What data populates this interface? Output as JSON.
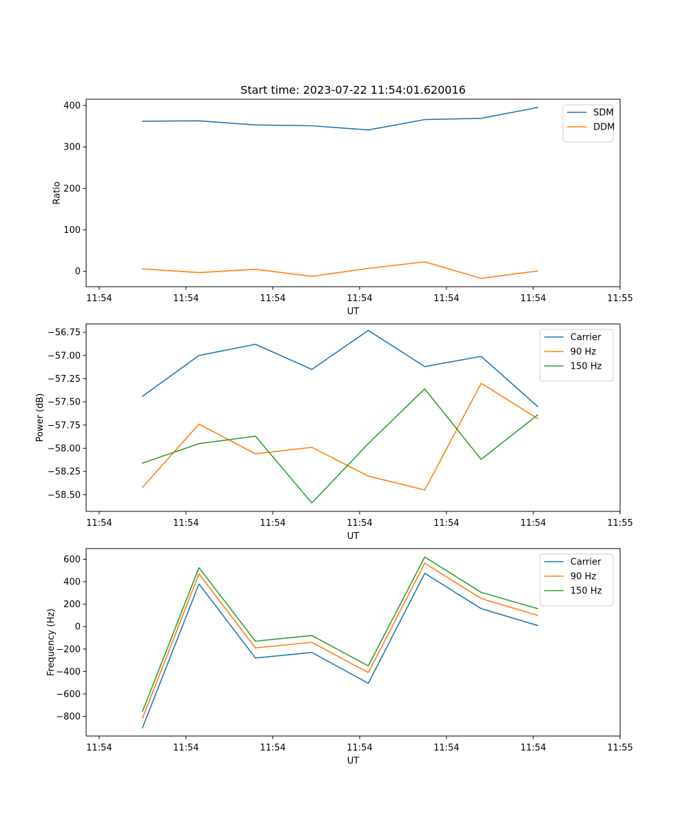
{
  "figure_title": "Start time: 2023-07-22 11:54:01.620016",
  "chart_data": [
    {
      "type": "line",
      "title": "Start time: 2023-07-22 11:54:01.620016",
      "xlabel": "UT",
      "ylabel": "Ratio",
      "x": [
        0.5,
        1.15,
        1.8,
        2.45,
        3.1,
        3.75,
        4.4,
        5.05
      ],
      "xlim": [
        -0.15,
        6.0
      ],
      "xticks": [
        0,
        1,
        2,
        3,
        4,
        5,
        6
      ],
      "xtick_labels": [
        "11:54",
        "11:54",
        "11:54",
        "11:54",
        "11:54",
        "11:54",
        "11:55"
      ],
      "ylim": [
        -37,
        415
      ],
      "yticks": [
        0,
        100,
        200,
        300,
        400
      ],
      "ytick_labels": [
        "0",
        "100",
        "200",
        "300",
        "400"
      ],
      "legend_position": "top-right",
      "series": [
        {
          "name": "SDM",
          "color": "#1f77b4",
          "values": [
            362,
            363,
            353,
            351,
            341,
            366,
            369,
            395
          ]
        },
        {
          "name": "DDM",
          "color": "#ff7f0e",
          "values": [
            6,
            -3,
            5,
            -12,
            7,
            23,
            -17,
            1
          ]
        }
      ]
    },
    {
      "type": "line",
      "title": "",
      "xlabel": "UT",
      "ylabel": "Power (dB)",
      "x": [
        0.5,
        1.15,
        1.8,
        2.45,
        3.1,
        3.75,
        4.4,
        5.05
      ],
      "xlim": [
        -0.15,
        6.0
      ],
      "xticks": [
        0,
        1,
        2,
        3,
        4,
        5,
        6
      ],
      "xtick_labels": [
        "11:54",
        "11:54",
        "11:54",
        "11:54",
        "11:54",
        "11:54",
        "11:55"
      ],
      "ylim": [
        -58.68,
        -56.66
      ],
      "yticks": [
        -58.5,
        -58.25,
        -58.0,
        -57.75,
        -57.5,
        -57.25,
        -57.0,
        -56.75
      ],
      "ytick_labels": [
        "−58.50",
        "−58.25",
        "−58.00",
        "−57.75",
        "−57.50",
        "−57.25",
        "−57.00",
        "−56.75"
      ],
      "legend_position": "top-right",
      "series": [
        {
          "name": "Carrier",
          "color": "#1f77b4",
          "values": [
            -57.44,
            -57.0,
            -56.88,
            -57.15,
            -56.73,
            -57.12,
            -57.01,
            -57.55
          ]
        },
        {
          "name": "90 Hz",
          "color": "#ff7f0e",
          "values": [
            -58.42,
            -57.74,
            -58.06,
            -57.99,
            -58.3,
            -58.45,
            -57.3,
            -57.68
          ]
        },
        {
          "name": "150 Hz",
          "color": "#2ca02c",
          "values": [
            -58.16,
            -57.95,
            -57.87,
            -58.59,
            -57.95,
            -57.36,
            -58.12,
            -57.64
          ]
        }
      ]
    },
    {
      "type": "line",
      "title": "",
      "xlabel": "UT",
      "ylabel": "Frequency (Hz)",
      "x": [
        0.5,
        1.15,
        1.8,
        2.45,
        3.1,
        3.75,
        4.4,
        5.05
      ],
      "xlim": [
        -0.15,
        6.0
      ],
      "xticks": [
        0,
        1,
        2,
        3,
        4,
        5,
        6
      ],
      "xtick_labels": [
        "11:54",
        "11:54",
        "11:54",
        "11:54",
        "11:54",
        "11:54",
        "11:55"
      ],
      "ylim": [
        -975,
        695
      ],
      "yticks": [
        -800,
        -600,
        -400,
        -200,
        0,
        200,
        400,
        600
      ],
      "ytick_labels": [
        "−800",
        "−600",
        "−400",
        "−200",
        "0",
        "200",
        "400",
        "600"
      ],
      "legend_position": "top-right",
      "series": [
        {
          "name": "Carrier",
          "color": "#1f77b4",
          "values": [
            -900,
            380,
            -280,
            -230,
            -505,
            475,
            160,
            10
          ]
        },
        {
          "name": "90 Hz",
          "color": "#ff7f0e",
          "values": [
            -815,
            470,
            -190,
            -140,
            -410,
            565,
            250,
            100
          ]
        },
        {
          "name": "150 Hz",
          "color": "#2ca02c",
          "values": [
            -755,
            525,
            -130,
            -80,
            -350,
            620,
            305,
            160
          ]
        }
      ]
    }
  ]
}
